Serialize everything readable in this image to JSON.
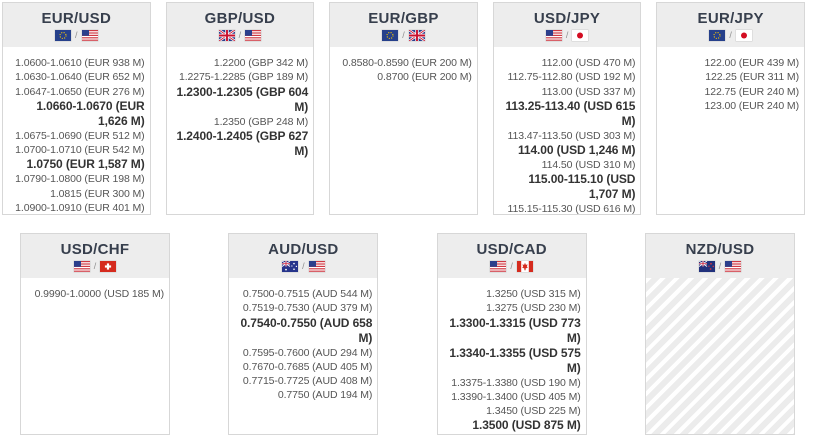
{
  "colors": {
    "header_bg": "#ededed",
    "card_border": "#d7d7d7",
    "title_text": "#373f4d",
    "entry_text": "#555555",
    "entry_bold_text": "#333333",
    "hatch_stripe": "#ececec"
  },
  "board": {
    "rows": [
      {
        "cards": [
          {
            "pair_label": "EUR/USD",
            "base_flag": "eu",
            "quote_flag": "us",
            "flag_separator": "/",
            "empty": false,
            "entries": [
              {
                "text": "1.0600-1.0610 (EUR 938 M)",
                "bold": false
              },
              {
                "text": "1.0630-1.0640 (EUR 652 M)",
                "bold": false
              },
              {
                "text": "1.0647-1.0650 (EUR 276 M)",
                "bold": false
              },
              {
                "text": "1.0660-1.0670 (EUR 1,626 M)",
                "bold": true
              },
              {
                "text": "1.0675-1.0690 (EUR 512 M)",
                "bold": false
              },
              {
                "text": "1.0700-1.0710 (EUR 542 M)",
                "bold": false
              },
              {
                "text": "1.0750 (EUR 1,587 M)",
                "bold": true
              },
              {
                "text": "1.0790-1.0800 (EUR 198 M)",
                "bold": false
              },
              {
                "text": "1.0815 (EUR 300 M)",
                "bold": false
              },
              {
                "text": "1.0900-1.0910 (EUR 401 M)",
                "bold": false
              }
            ]
          },
          {
            "pair_label": "GBP/USD",
            "base_flag": "gb",
            "quote_flag": "us",
            "flag_separator": "/",
            "empty": false,
            "entries": [
              {
                "text": "1.2200 (GBP 342 M)",
                "bold": false
              },
              {
                "text": "1.2275-1.2285 (GBP 189 M)",
                "bold": false
              },
              {
                "text": "1.2300-1.2305 (GBP 604 M)",
                "bold": true
              },
              {
                "text": "1.2350 (GBP 248 M)",
                "bold": false
              },
              {
                "text": "1.2400-1.2405 (GBP 627 M)",
                "bold": true
              }
            ]
          },
          {
            "pair_label": "EUR/GBP",
            "base_flag": "eu",
            "quote_flag": "gb",
            "flag_separator": "/",
            "empty": false,
            "entries": [
              {
                "text": "0.8580-0.8590 (EUR 200 M)",
                "bold": false
              },
              {
                "text": "0.8700 (EUR 200 M)",
                "bold": false
              }
            ]
          },
          {
            "pair_label": "USD/JPY",
            "base_flag": "us",
            "quote_flag": "jp",
            "flag_separator": "/",
            "empty": false,
            "entries": [
              {
                "text": "112.00 (USD 470 M)",
                "bold": false
              },
              {
                "text": "112.75-112.80 (USD 192 M)",
                "bold": false
              },
              {
                "text": "113.00 (USD 337 M)",
                "bold": false
              },
              {
                "text": "113.25-113.40 (USD 615 M)",
                "bold": true
              },
              {
                "text": "113.47-113.50 (USD 303 M)",
                "bold": false
              },
              {
                "text": "114.00 (USD 1,246 M)",
                "bold": true
              },
              {
                "text": "114.50 (USD 310 M)",
                "bold": false
              },
              {
                "text": "115.00-115.10 (USD 1,707 M)",
                "bold": true
              },
              {
                "text": "115.15-115.30 (USD 616 M)",
                "bold": false
              }
            ]
          },
          {
            "pair_label": "EUR/JPY",
            "base_flag": "eu",
            "quote_flag": "jp",
            "flag_separator": "/",
            "empty": false,
            "entries": [
              {
                "text": "122.00 (EUR 439 M)",
                "bold": false
              },
              {
                "text": "122.25 (EUR 311 M)",
                "bold": false
              },
              {
                "text": "122.75 (EUR 240 M)",
                "bold": false
              },
              {
                "text": "123.00 (EUR 240 M)",
                "bold": false
              }
            ]
          }
        ]
      },
      {
        "cards": [
          {
            "pair_label": "USD/CHF",
            "base_flag": "us",
            "quote_flag": "ch",
            "flag_separator": "/",
            "empty": false,
            "entries": [
              {
                "text": "0.9990-1.0000 (USD 185 M)",
                "bold": false
              }
            ]
          },
          {
            "pair_label": "AUD/USD",
            "base_flag": "au",
            "quote_flag": "us",
            "flag_separator": "/",
            "empty": false,
            "entries": [
              {
                "text": "0.7500-0.7515 (AUD 544 M)",
                "bold": false
              },
              {
                "text": "0.7519-0.7530 (AUD 379 M)",
                "bold": false
              },
              {
                "text": "0.7540-0.7550 (AUD 658 M)",
                "bold": true
              },
              {
                "text": "0.7595-0.7600 (AUD 294 M)",
                "bold": false
              },
              {
                "text": "0.7670-0.7685 (AUD 405 M)",
                "bold": false
              },
              {
                "text": "0.7715-0.7725 (AUD 408 M)",
                "bold": false
              },
              {
                "text": "0.7750 (AUD 194 M)",
                "bold": false
              }
            ]
          },
          {
            "pair_label": "USD/CAD",
            "base_flag": "us",
            "quote_flag": "ca",
            "flag_separator": "/",
            "empty": false,
            "entries": [
              {
                "text": "1.3250 (USD 315 M)",
                "bold": false
              },
              {
                "text": "1.3275 (USD 230 M)",
                "bold": false
              },
              {
                "text": "1.3300-1.3315 (USD 773 M)",
                "bold": true
              },
              {
                "text": "1.3340-1.3355 (USD 575 M)",
                "bold": true
              },
              {
                "text": "1.3375-1.3380 (USD 190 M)",
                "bold": false
              },
              {
                "text": "1.3390-1.3400 (USD 405 M)",
                "bold": false
              },
              {
                "text": "1.3450 (USD 225 M)",
                "bold": false
              },
              {
                "text": "1.3500 (USD 875 M)",
                "bold": true
              }
            ]
          },
          {
            "pair_label": "NZD/USD",
            "base_flag": "nz",
            "quote_flag": "us",
            "flag_separator": "/",
            "empty": true,
            "entries": []
          }
        ]
      }
    ]
  }
}
